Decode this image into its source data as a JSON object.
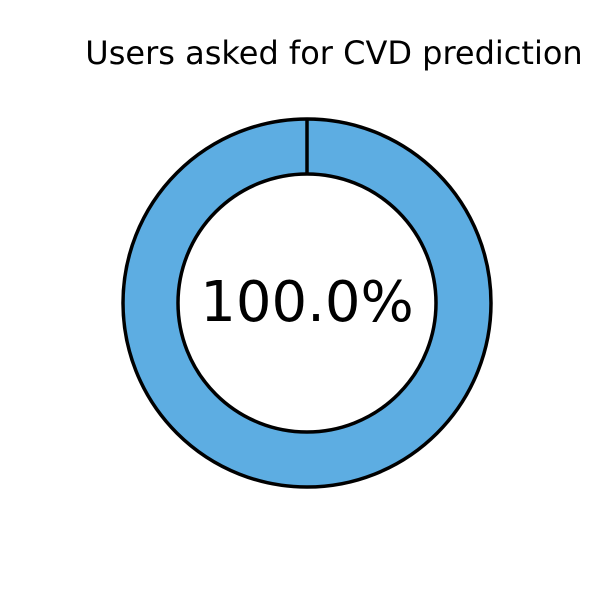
{
  "chart_data": {
    "type": "pie",
    "title": "Users asked for CVD prediction",
    "center_label": "100.0%",
    "slices": [
      {
        "value": 100.0,
        "color": "#5DADE2"
      }
    ],
    "edge_color": "#000000",
    "background": "#FFFFFF"
  }
}
